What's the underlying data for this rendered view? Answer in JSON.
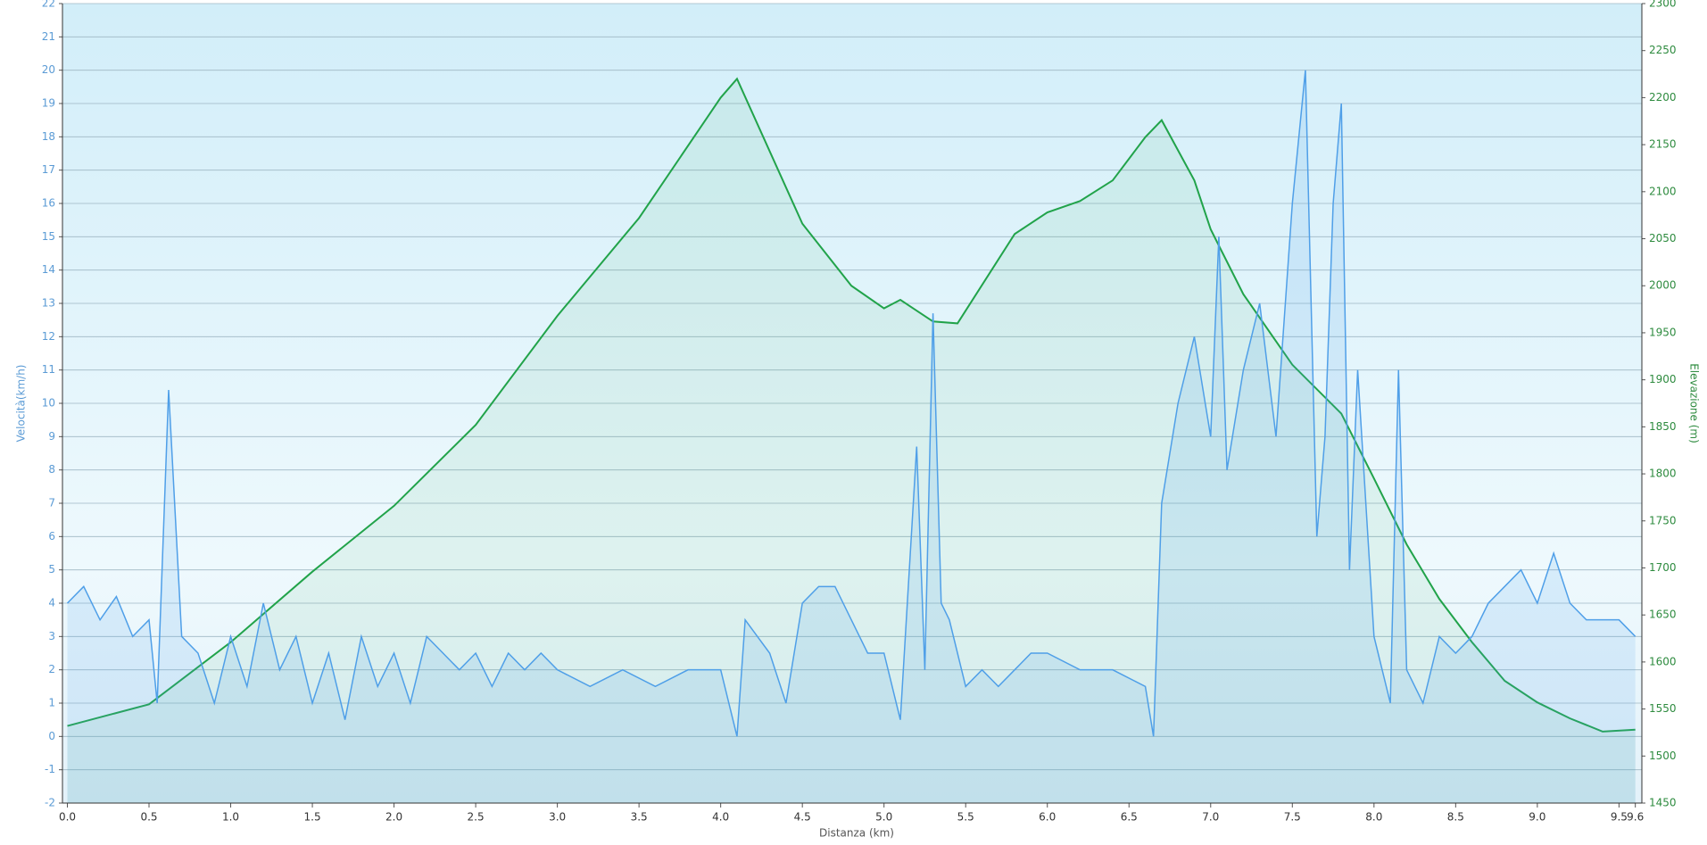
{
  "chart_data": {
    "type": "line",
    "x_label": "Distanza  (km)",
    "y_label": "Velocità(km/h)",
    "y2_label": "Elevazione (m)",
    "xlim": [
      -0.03,
      9.64
    ],
    "ylim": [
      -2,
      22
    ],
    "y2lim": [
      1450,
      2300
    ],
    "xticks": [
      {
        "value": 0,
        "label": "0.0"
      },
      0.5,
      {
        "value": 1,
        "label": "1.0"
      },
      1.5,
      {
        "value": 2,
        "label": "2.0"
      },
      2.5,
      {
        "value": 3,
        "label": "3.0"
      },
      3.5,
      {
        "value": 4,
        "label": "4.0"
      },
      4.5,
      {
        "value": 5,
        "label": "5.0"
      },
      5.5,
      {
        "value": 6,
        "label": "6.0"
      },
      6.5,
      {
        "value": 7,
        "label": "7.0"
      },
      7.5,
      {
        "value": 8,
        "label": "8.0"
      },
      8.5,
      {
        "value": 9,
        "label": "9.0"
      },
      9.5,
      9.6
    ],
    "yticks": [
      -2,
      -1,
      0,
      1,
      2,
      3,
      4,
      5,
      6,
      7,
      8,
      9,
      10,
      11,
      12,
      13,
      14,
      15,
      16,
      17,
      18,
      19,
      20,
      21,
      22
    ],
    "y2ticks": [
      1450,
      1500,
      1550,
      1600,
      1650,
      1700,
      1750,
      1800,
      1850,
      1900,
      1950,
      2000,
      2050,
      2100,
      2150,
      2200,
      2250,
      2300
    ],
    "grid": true,
    "series": [
      {
        "color": "#21a34a",
        "axis": "y2",
        "x": [
          0,
          0.5,
          1.0,
          1.5,
          2.0,
          2.5,
          3.0,
          3.5,
          4.0,
          4.1,
          4.5,
          4.8,
          5.0,
          5.1,
          5.3,
          5.45,
          5.8,
          6.0,
          6.2,
          6.4,
          6.6,
          6.7,
          6.9,
          7.0,
          7.2,
          7.5,
          7.8,
          8.0,
          8.2,
          8.4,
          8.6,
          8.8,
          9.0,
          9.2,
          9.4,
          9.6
        ],
        "values": [
          1532,
          1555,
          1621,
          1696,
          1766,
          1852,
          1968,
          2072,
          2200,
          2220,
          2066,
          2000,
          1976,
          1985,
          1962,
          1960,
          2055,
          2078,
          2090,
          2112,
          2158,
          2176,
          2112,
          2060,
          1991,
          1916,
          1864,
          1795,
          1725,
          1667,
          1621,
          1580,
          1557,
          1540,
          1526,
          1528
        ]
      },
      {
        "color": "#4f9fe8",
        "axis": "y",
        "x": [
          0,
          0.1,
          0.2,
          0.3,
          0.4,
          0.5,
          0.55,
          0.62,
          0.7,
          0.8,
          0.9,
          1.0,
          1.1,
          1.2,
          1.3,
          1.4,
          1.5,
          1.6,
          1.7,
          1.8,
          1.9,
          2.0,
          2.1,
          2.2,
          2.3,
          2.4,
          2.5,
          2.6,
          2.7,
          2.8,
          2.9,
          3.0,
          3.2,
          3.4,
          3.6,
          3.8,
          4.0,
          4.1,
          4.15,
          4.3,
          4.4,
          4.5,
          4.6,
          4.7,
          4.8,
          4.9,
          5.0,
          5.1,
          5.2,
          5.25,
          5.3,
          5.35,
          5.4,
          5.5,
          5.6,
          5.7,
          5.8,
          5.9,
          6.0,
          6.2,
          6.4,
          6.6,
          6.65,
          6.7,
          6.8,
          6.9,
          7.0,
          7.05,
          7.1,
          7.2,
          7.3,
          7.4,
          7.5,
          7.58,
          7.65,
          7.7,
          7.75,
          7.8,
          7.85,
          7.9,
          8.0,
          8.1,
          8.15,
          8.2,
          8.3,
          8.4,
          8.5,
          8.6,
          8.7,
          8.8,
          8.9,
          9.0,
          9.1,
          9.2,
          9.3,
          9.4,
          9.5,
          9.6
        ],
        "values": [
          4,
          4.5,
          3.5,
          4.2,
          3,
          3.5,
          1,
          10.4,
          3,
          2.5,
          1,
          3,
          1.5,
          4,
          2,
          3,
          1,
          2.5,
          0.5,
          3,
          1.5,
          2.5,
          1,
          3,
          2.5,
          2,
          2.5,
          1.5,
          2.5,
          2,
          2.5,
          2,
          1.5,
          2,
          1.5,
          2,
          2,
          0,
          3.5,
          2.5,
          1,
          4,
          4.5,
          4.5,
          3.5,
          2.5,
          2.5,
          0.5,
          8.7,
          2,
          12.7,
          4,
          3.5,
          1.5,
          2,
          1.5,
          2,
          2.5,
          2.5,
          2,
          2,
          1.5,
          0,
          7,
          10,
          12,
          9,
          15,
          8,
          11,
          13,
          9,
          16,
          20,
          6,
          9,
          16,
          19,
          5,
          11,
          3,
          1,
          11,
          2,
          1,
          3,
          2.5,
          3,
          4,
          4.5,
          5,
          4,
          5.5,
          4,
          3.5,
          3.5,
          3.5,
          3
        ]
      }
    ]
  }
}
